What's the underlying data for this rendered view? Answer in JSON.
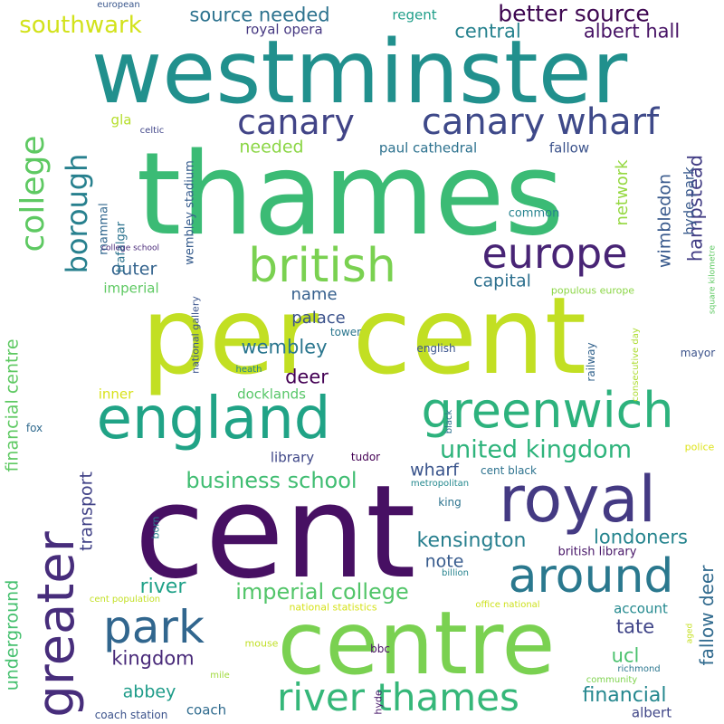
{
  "background": "#ffffff",
  "words": [
    {
      "text": "per cent",
      "color": "#c2df23"
    },
    {
      "text": "cent",
      "color": "#471063"
    },
    {
      "text": "thames",
      "color": "#3bbb75"
    },
    {
      "text": "westminster",
      "color": "#21908d"
    },
    {
      "text": "centre",
      "color": "#7ad151"
    },
    {
      "text": "england",
      "color": "#20a386"
    },
    {
      "text": "royal",
      "color": "#443a83"
    },
    {
      "text": "greenwich",
      "color": "#2db27d"
    },
    {
      "text": "around",
      "color": "#2a788e"
    },
    {
      "text": "greater",
      "color": "#472d7b"
    },
    {
      "text": "park",
      "color": "#31668e"
    },
    {
      "text": "british",
      "color": "#7ad151"
    },
    {
      "text": "europe",
      "color": "#482475"
    },
    {
      "text": "canary wharf",
      "color": "#3e4989"
    },
    {
      "text": "canary",
      "color": "#414487"
    },
    {
      "text": "river thames",
      "color": "#35b779"
    },
    {
      "text": "college",
      "color": "#5ec962"
    },
    {
      "text": "borough",
      "color": "#27808e"
    },
    {
      "text": "southwark",
      "color": "#d2e21b"
    },
    {
      "text": "better source",
      "color": "#3e0751"
    },
    {
      "text": "source needed",
      "color": "#2c728e"
    },
    {
      "text": "central",
      "color": "#26828e"
    },
    {
      "text": "albert hall",
      "color": "#471365"
    },
    {
      "text": "regent",
      "color": "#1f9e89"
    },
    {
      "text": "european",
      "color": "#39568c"
    },
    {
      "text": "royal opera",
      "color": "#453781"
    },
    {
      "text": "united kingdom",
      "color": "#2fb47c"
    },
    {
      "text": "business school",
      "color": "#40bd72"
    },
    {
      "text": "imperial college",
      "color": "#52c569"
    },
    {
      "text": "kensington",
      "color": "#277f8e"
    },
    {
      "text": "londoners",
      "color": "#25848e"
    },
    {
      "text": "river",
      "color": "#1fa188"
    },
    {
      "text": "financial",
      "color": "#24878e"
    },
    {
      "text": "wembley",
      "color": "#2a768e"
    },
    {
      "text": "capital",
      "color": "#2d708e"
    },
    {
      "text": "outer",
      "color": "#33638d"
    },
    {
      "text": "hampstead",
      "color": "#433e85"
    },
    {
      "text": "wimbledon",
      "color": "#38598c"
    },
    {
      "text": "network",
      "color": "#95d840"
    },
    {
      "text": "fallow deer",
      "color": "#306a8e"
    },
    {
      "text": "kingdom",
      "color": "#482979"
    },
    {
      "text": "abbey",
      "color": "#1e9c89"
    },
    {
      "text": "financial centre",
      "color": "#5ec962"
    },
    {
      "text": "underground",
      "color": "#46c06f"
    },
    {
      "text": "transport",
      "color": "#414287"
    },
    {
      "text": "tate",
      "color": "#404588"
    },
    {
      "text": "ucl",
      "color": "#4ac16d"
    },
    {
      "text": "note",
      "color": "#375b8d"
    },
    {
      "text": "wharf",
      "color": "#3a548c"
    },
    {
      "text": "deer",
      "color": "#440154"
    },
    {
      "text": "palace",
      "color": "#3b528b"
    },
    {
      "text": "name",
      "color": "#355f8d"
    },
    {
      "text": "library",
      "color": "#3f4788"
    },
    {
      "text": "docklands",
      "color": "#56c667"
    },
    {
      "text": "needed",
      "color": "#8bd646"
    },
    {
      "text": "paul cathedral",
      "color": "#2c718e"
    },
    {
      "text": "gla",
      "color": "#b5de2b"
    },
    {
      "text": "mammal",
      "color": "#31678e"
    },
    {
      "text": "trafalgar",
      "color": "#2c738e"
    },
    {
      "text": "imperial",
      "color": "#5ec962"
    },
    {
      "text": "wembley stadium",
      "color": "#365c8d"
    },
    {
      "text": "fallow",
      "color": "#3b528b"
    },
    {
      "text": "common",
      "color": "#25838e"
    },
    {
      "text": "hyde park",
      "color": "#38598c"
    },
    {
      "text": "account",
      "color": "#23898e"
    },
    {
      "text": "coach",
      "color": "#2f6b8e"
    },
    {
      "text": "albert",
      "color": "#404688"
    },
    {
      "text": "inner",
      "color": "#d8e219"
    },
    {
      "text": "national gallery",
      "color": "#3a548c"
    },
    {
      "text": "tower",
      "color": "#2a768e"
    },
    {
      "text": "english",
      "color": "#3a548c"
    },
    {
      "text": "heath",
      "color": "#25858e"
    },
    {
      "text": "railway",
      "color": "#33638d"
    },
    {
      "text": "consecutive day",
      "color": "#addc30"
    },
    {
      "text": "mayor",
      "color": "#3b528b"
    },
    {
      "text": "square kilometre",
      "color": "#5ec962"
    },
    {
      "text": "populous europe",
      "color": "#8bd646"
    },
    {
      "text": "police",
      "color": "#dde318"
    },
    {
      "text": "celtic",
      "color": "#404588"
    },
    {
      "text": "college school",
      "color": "#482878"
    },
    {
      "text": "fox",
      "color": "#306a8e"
    },
    {
      "text": "tudor",
      "color": "#440154"
    },
    {
      "text": "black",
      "color": "#2d718e"
    },
    {
      "text": "cent black",
      "color": "#2c728e"
    },
    {
      "text": "metropolitan",
      "color": "#23888e"
    },
    {
      "text": "king",
      "color": "#2c738e"
    },
    {
      "text": "born",
      "color": "#277f8e"
    },
    {
      "text": "british library",
      "color": "#481668"
    },
    {
      "text": "billion",
      "color": "#25838e"
    },
    {
      "text": "cent population",
      "color": "#c2df23"
    },
    {
      "text": "national statistics",
      "color": "#d5e21a"
    },
    {
      "text": "office national",
      "color": "#cde11d"
    },
    {
      "text": "mouse",
      "color": "#c0df25"
    },
    {
      "text": "bbc",
      "color": "#471164"
    },
    {
      "text": "hyde",
      "color": "#48186a"
    },
    {
      "text": "mile",
      "color": "#9fda3a"
    },
    {
      "text": "aged",
      "color": "#c5e021"
    },
    {
      "text": "richmond",
      "color": "#2a768e"
    },
    {
      "text": "community",
      "color": "#7fd34e"
    },
    {
      "text": "coach station",
      "color": "#3b528b"
    }
  ]
}
